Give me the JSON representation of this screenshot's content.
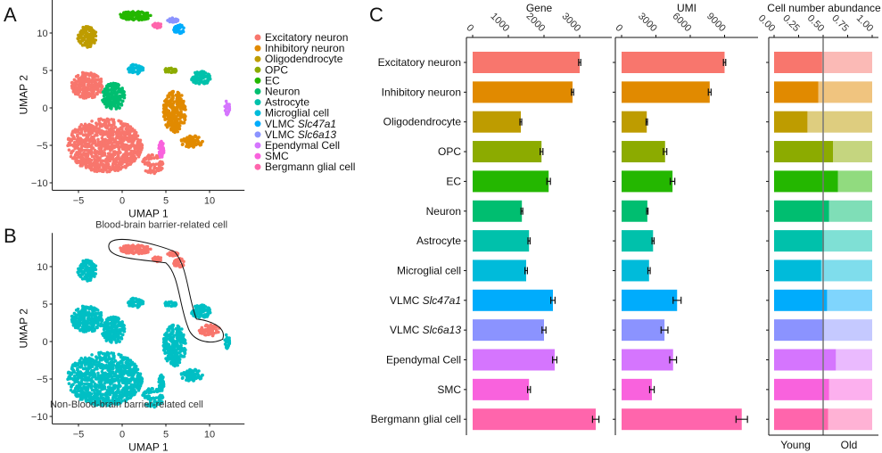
{
  "panels": {
    "a": "A",
    "b": "B",
    "c": "C"
  },
  "umap": {
    "xlabel": "UMAP 1",
    "ylabel": "UMAP 2",
    "xticks": [
      -5,
      0,
      5,
      10
    ],
    "yticks": [
      10,
      5,
      0,
      -5,
      -10
    ],
    "bbb_label": "Blood-brain barrier-related cell",
    "non_bbb_label": "Non-Blood-brain barrier-related cell",
    "bbb_color": "#F8766D",
    "non_bbb_color": "#00BFC4"
  },
  "legend": [
    {
      "label": "Excitatory neuron",
      "color": "#F8766D"
    },
    {
      "label": "Inhibitory neuron",
      "color": "#E18A00"
    },
    {
      "label": "Oligodendrocyte",
      "color": "#BE9C00"
    },
    {
      "label": "OPC",
      "color": "#8CAB00"
    },
    {
      "label": "EC",
      "color": "#24B700"
    },
    {
      "label": "Neuron",
      "color": "#00BE70"
    },
    {
      "label": "Astrocyte",
      "color": "#00C1AB"
    },
    {
      "label": "Microglial cell",
      "color": "#00BBDA"
    },
    {
      "label": "VLMC ",
      "italic": "Slc47a1",
      "color": "#00ACFC"
    },
    {
      "label": "VLMC ",
      "italic": "Slc6a13",
      "color": "#8B93FF"
    },
    {
      "label": "Ependymal Cell",
      "color": "#D575FE"
    },
    {
      "label": "SMC",
      "color": "#F962DD"
    },
    {
      "label": "Bergmann glial cell",
      "color": "#FF65AC"
    }
  ],
  "chart_data": [
    {
      "type": "bar",
      "title": "Gene",
      "orientation": "horizontal",
      "xticks": [
        0,
        1000,
        2000,
        3000
      ],
      "xlim": [
        0,
        3700
      ],
      "categories": [
        "Excitatory neuron",
        "Inhibitory neuron",
        "Oligodendrocyte",
        "OPC",
        "EC",
        "Neuron",
        "Astrocyte",
        "Microglial cell",
        "VLMC Slc47a1",
        "VLMC Slc6a13",
        "Ependymal Cell",
        "SMC",
        "Bergmann glial cell"
      ],
      "values": [
        3000,
        2800,
        1350,
        1930,
        2130,
        1380,
        1580,
        1500,
        2250,
        2000,
        2300,
        1580,
        3450
      ],
      "errors": [
        30,
        30,
        25,
        40,
        50,
        25,
        30,
        35,
        60,
        55,
        60,
        40,
        90
      ]
    },
    {
      "type": "bar",
      "title": "UMI",
      "orientation": "horizontal",
      "xticks": [
        0,
        3000,
        6000,
        9000
      ],
      "xlim": [
        0,
        11300
      ],
      "categories": [
        "Excitatory neuron",
        "Inhibitory neuron",
        "Oligodendrocyte",
        "OPC",
        "EC",
        "Neuron",
        "Astrocyte",
        "Microglial cell",
        "VLMC Slc47a1",
        "VLMC Slc6a13",
        "Ependymal Cell",
        "SMC",
        "Bergmann glial cell"
      ],
      "values": [
        9000,
        7700,
        2200,
        3800,
        4450,
        2250,
        2750,
        2400,
        4850,
        3750,
        4500,
        2650,
        10500
      ],
      "errors": [
        100,
        120,
        60,
        150,
        200,
        60,
        90,
        100,
        350,
        300,
        300,
        200,
        500
      ]
    },
    {
      "type": "bar",
      "stacked": true,
      "title": "Cell number abundance",
      "xticks": [
        "0.00",
        "0.25",
        "0.50",
        "0.75",
        "1.00"
      ],
      "xlim": [
        0,
        1
      ],
      "reference_line": 0.5,
      "series": [
        {
          "name": "Young",
          "values": [
            0.49,
            0.45,
            0.34,
            0.6,
            0.65,
            0.56,
            0.51,
            0.48,
            0.54,
            0.51,
            0.63,
            0.56,
            0.55
          ]
        },
        {
          "name": "Old",
          "values": [
            0.51,
            0.55,
            0.66,
            0.4,
            0.35,
            0.44,
            0.49,
            0.52,
            0.46,
            0.49,
            0.37,
            0.44,
            0.45
          ]
        }
      ]
    }
  ]
}
